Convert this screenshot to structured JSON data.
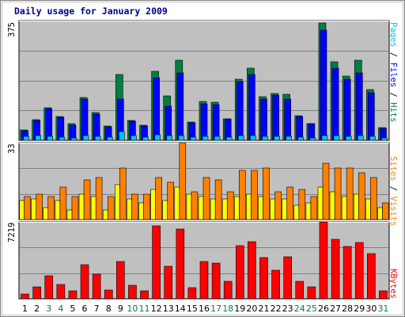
{
  "title": "Daily usage for January 2009",
  "colors": {
    "background": "#ffffff",
    "plot_background": "#c0c0c0",
    "title": "#00008b",
    "hits": "#008040",
    "files": "#0000ff",
    "pages": "#00c0ff",
    "visits": "#ff8000",
    "sites": "#ffff00",
    "kbytes": "#ff0000",
    "weekday_label": "#000000",
    "weekend_label": "#008040"
  },
  "legends": {
    "top": {
      "pages": "Pages",
      "files": "Files",
      "hits": "Hits",
      "separator": " / "
    },
    "middle": {
      "sites": "Sites",
      "visits": "Visits",
      "separator": " / "
    },
    "bottom": {
      "kbytes": "KBytes"
    }
  },
  "chart_data": [
    {
      "type": "bar",
      "name": "hits-files-pages",
      "x": [
        "1",
        "2",
        "3",
        "4",
        "5",
        "6",
        "7",
        "8",
        "9",
        "10",
        "11",
        "12",
        "13",
        "14",
        "15",
        "16",
        "17",
        "18",
        "19",
        "20",
        "21",
        "22",
        "23",
        "24",
        "25",
        "26",
        "27",
        "28",
        "29",
        "30",
        "31"
      ],
      "series": [
        {
          "name": "Hits",
          "values": [
            32,
            64,
            103,
            75,
            52,
            135,
            87,
            45,
            205,
            62,
            47,
            215,
            140,
            250,
            57,
            122,
            118,
            68,
            190,
            225,
            137,
            147,
            145,
            78,
            53,
            367,
            245,
            200,
            250,
            158,
            40
          ]
        },
        {
          "name": "Files",
          "values": [
            30,
            62,
            100,
            72,
            48,
            130,
            83,
            43,
            128,
            60,
            45,
            197,
            108,
            212,
            55,
            115,
            112,
            66,
            185,
            207,
            128,
            142,
            128,
            75,
            52,
            345,
            225,
            192,
            212,
            148,
            38
          ]
        },
        {
          "name": "Pages",
          "values": [
            12,
            14,
            12,
            10,
            8,
            14,
            12,
            10,
            28,
            14,
            10,
            18,
            14,
            16,
            10,
            12,
            12,
            10,
            16,
            14,
            12,
            12,
            12,
            10,
            8,
            16,
            14,
            12,
            14,
            12,
            8
          ]
        }
      ],
      "ylim": [
        0,
        375
      ],
      "y_max_label": "375",
      "grid": true
    },
    {
      "type": "bar",
      "name": "visits-sites",
      "x": [
        "1",
        "2",
        "3",
        "4",
        "5",
        "6",
        "7",
        "8",
        "9",
        "10",
        "11",
        "12",
        "13",
        "14",
        "15",
        "16",
        "17",
        "18",
        "19",
        "20",
        "21",
        "22",
        "23",
        "24",
        "25",
        "26",
        "27",
        "28",
        "29",
        "30",
        "31"
      ],
      "series": [
        {
          "name": "Visits",
          "values": [
            10,
            11,
            10,
            14,
            10,
            17,
            18,
            10,
            22,
            11,
            11,
            18,
            16,
            33,
            12,
            18,
            17,
            12,
            21,
            21,
            22,
            12,
            14,
            13,
            10,
            24,
            22,
            22,
            20,
            18,
            7
          ]
        },
        {
          "name": "Sites",
          "values": [
            8,
            9,
            5,
            8,
            4,
            11,
            10,
            4,
            15,
            9,
            7,
            13,
            8,
            14,
            11,
            10,
            9,
            9,
            10,
            11,
            10,
            9,
            9,
            6,
            7,
            14,
            12,
            10,
            11,
            9,
            5
          ]
        }
      ],
      "ylim": [
        0,
        33
      ],
      "y_max_label": "33",
      "grid": true
    },
    {
      "type": "bar",
      "name": "kbytes",
      "x": [
        "1",
        "2",
        "3",
        "4",
        "5",
        "6",
        "7",
        "8",
        "9",
        "10",
        "11",
        "12",
        "13",
        "14",
        "15",
        "16",
        "17",
        "18",
        "19",
        "20",
        "21",
        "22",
        "23",
        "24",
        "25",
        "26",
        "27",
        "28",
        "29",
        "30",
        "31"
      ],
      "series": [
        {
          "name": "KBytes",
          "values": [
            480,
            1130,
            2150,
            1340,
            760,
            3180,
            2320,
            850,
            3520,
            1260,
            760,
            6830,
            3080,
            6560,
            1050,
            3500,
            3350,
            1660,
            4950,
            5390,
            3880,
            2700,
            3920,
            1670,
            1110,
            7219,
            5550,
            4880,
            5310,
            4260,
            760
          ]
        }
      ],
      "ylim": [
        0,
        7219
      ],
      "y_max_label": "7219",
      "grid": true
    }
  ],
  "weekend_days": [
    "3",
    "4",
    "10",
    "11",
    "17",
    "18",
    "24",
    "25",
    "31"
  ]
}
